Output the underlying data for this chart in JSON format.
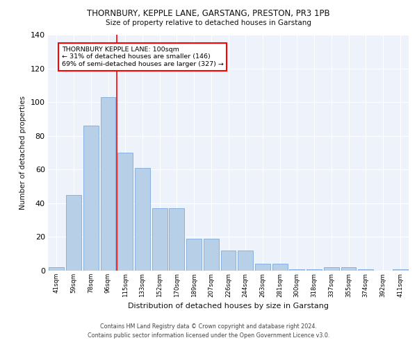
{
  "title1": "THORNBURY, KEPPLE LANE, GARSTANG, PRESTON, PR3 1PB",
  "title2": "Size of property relative to detached houses in Garstang",
  "xlabel": "Distribution of detached houses by size in Garstang",
  "ylabel": "Number of detached properties",
  "categories": [
    "41sqm",
    "59sqm",
    "78sqm",
    "96sqm",
    "115sqm",
    "133sqm",
    "152sqm",
    "170sqm",
    "189sqm",
    "207sqm",
    "226sqm",
    "244sqm",
    "263sqm",
    "281sqm",
    "300sqm",
    "318sqm",
    "337sqm",
    "355sqm",
    "374sqm",
    "392sqm",
    "411sqm"
  ],
  "values": [
    2,
    45,
    86,
    103,
    70,
    61,
    37,
    37,
    19,
    19,
    12,
    12,
    4,
    4,
    1,
    1,
    2,
    2,
    1,
    0,
    1
  ],
  "bar_color": "#b8cfe8",
  "bar_edge_color": "#6a9fd8",
  "property_line_x": 3.5,
  "annotation_text": "THORNBURY KEPPLE LANE: 100sqm\n← 31% of detached houses are smaller (146)\n69% of semi-detached houses are larger (327) →",
  "annotation_box_color": "white",
  "annotation_box_edge_color": "red",
  "vline_color": "red",
  "ylim": [
    0,
    140
  ],
  "yticks": [
    0,
    20,
    40,
    60,
    80,
    100,
    120,
    140
  ],
  "background_color": "#eef2fb",
  "footer1": "Contains HM Land Registry data © Crown copyright and database right 2024.",
  "footer2": "Contains public sector information licensed under the Open Government Licence v3.0."
}
